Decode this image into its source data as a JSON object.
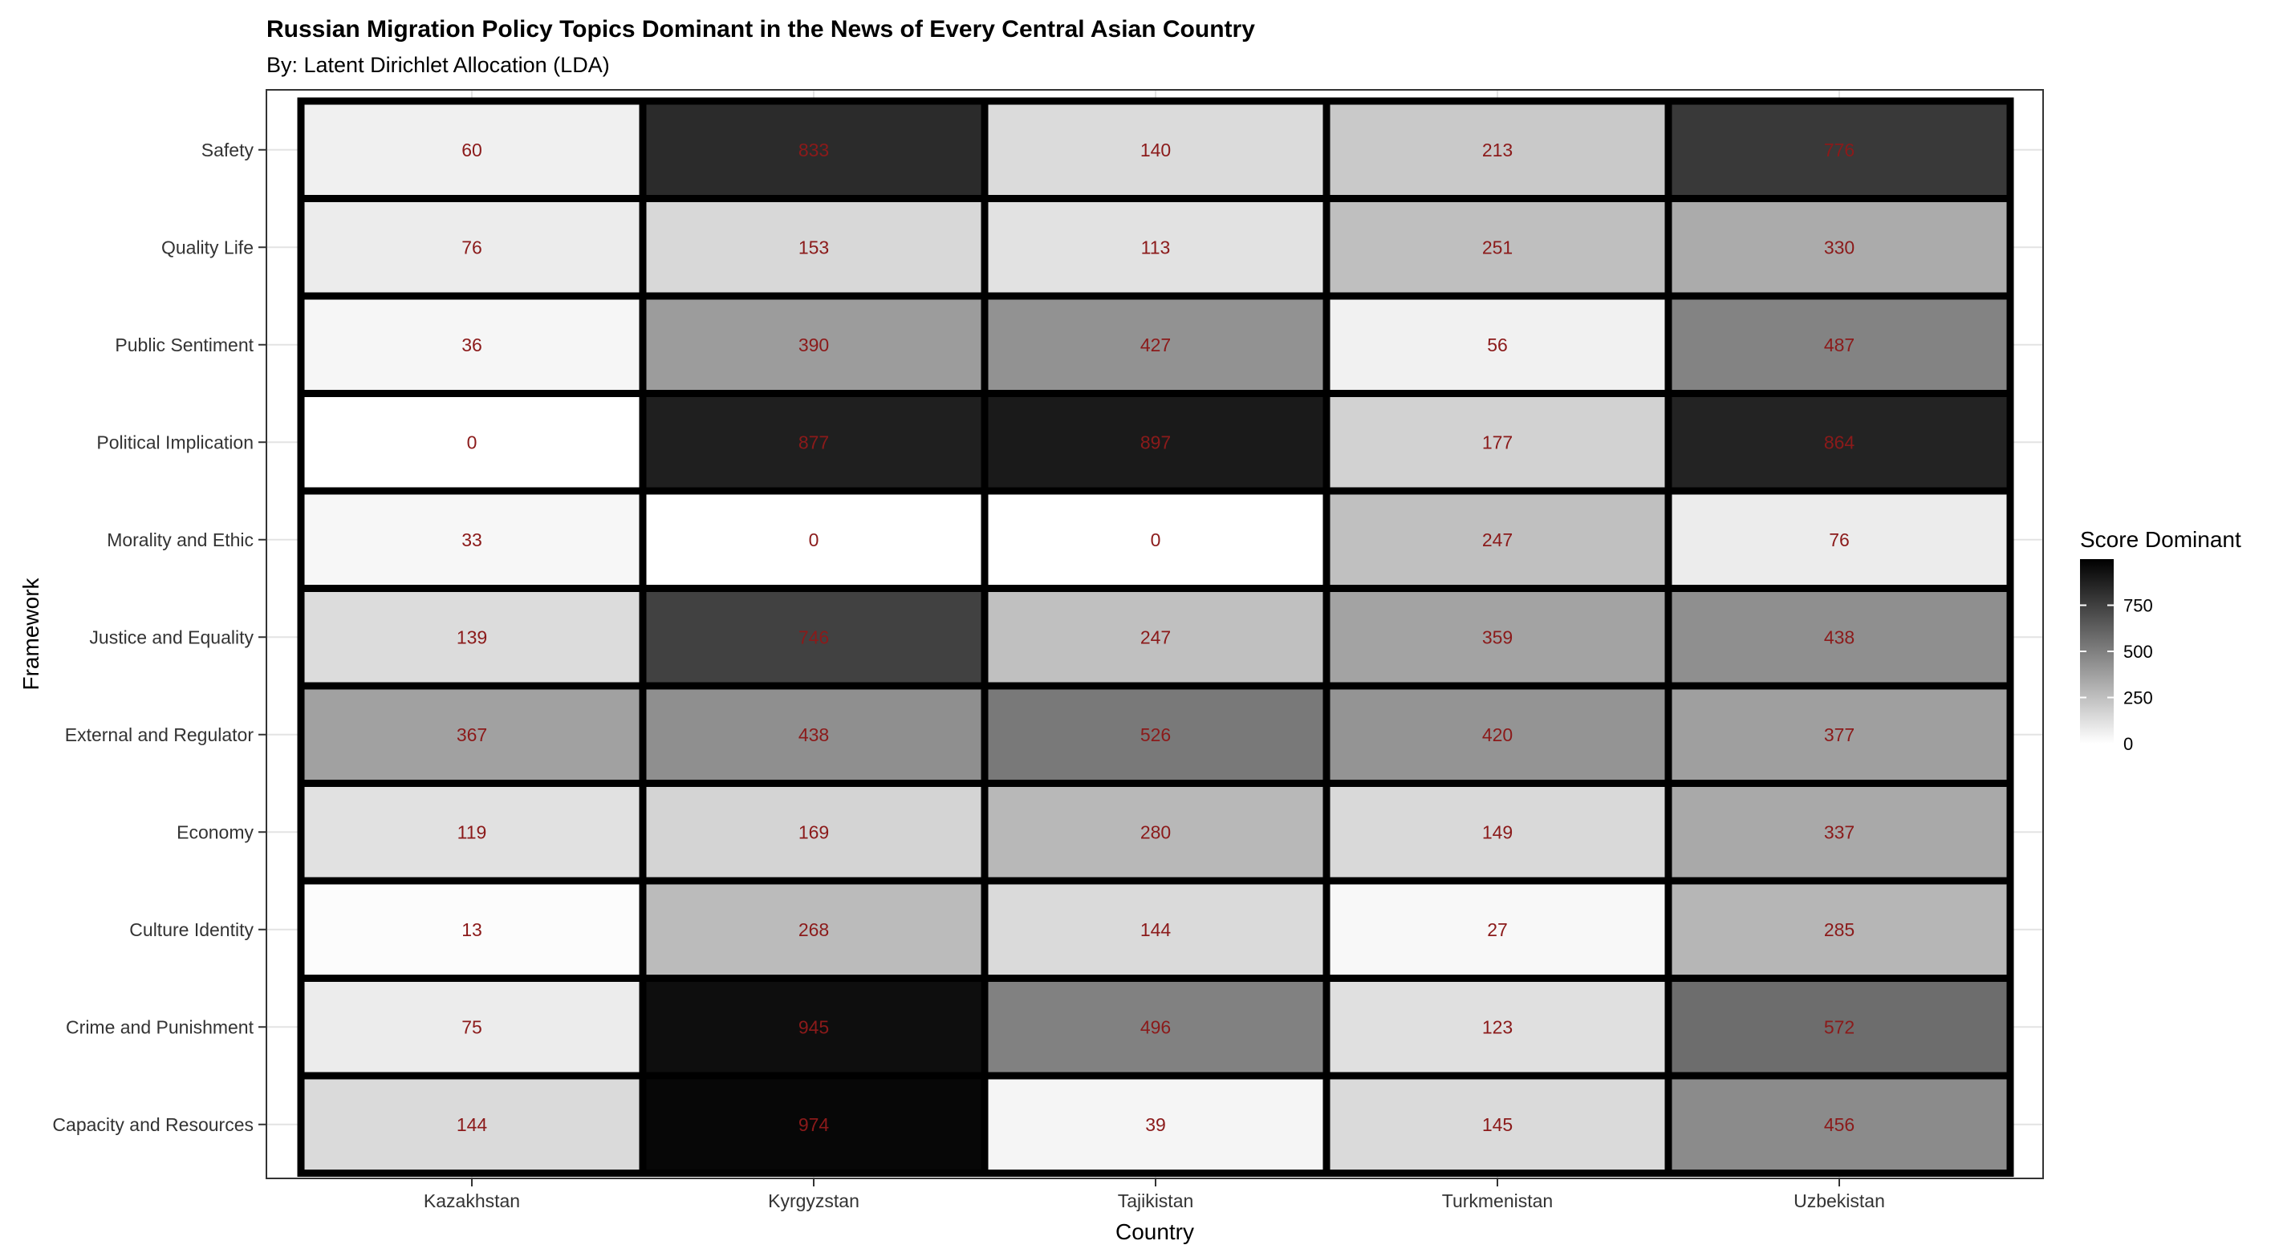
{
  "chart_data": {
    "type": "heatmap",
    "title": "Russian Migration Policy Topics Dominant in the News of Every Central Asian Country",
    "subtitle": "By: Latent Dirichlet Allocation (LDA)",
    "xlabel": "Country",
    "ylabel": "Framework",
    "x_categories": [
      "Kazakhstan",
      "Kyrgyzstan",
      "Tajikistan",
      "Turkmenistan",
      "Uzbekistan"
    ],
    "y_categories": [
      "Safety",
      "Quality Life",
      "Public Sentiment",
      "Political Implication",
      "Morality and Ethic",
      "Justice and Equality",
      "External and Regulator",
      "Economy",
      "Culture Identity",
      "Crime and Punishment",
      "Capacity and Resources"
    ],
    "values": [
      [
        60,
        833,
        140,
        213,
        776
      ],
      [
        76,
        153,
        113,
        251,
        330
      ],
      [
        36,
        390,
        427,
        56,
        487
      ],
      [
        0,
        877,
        897,
        177,
        864
      ],
      [
        33,
        0,
        0,
        247,
        76
      ],
      [
        139,
        746,
        247,
        359,
        438
      ],
      [
        367,
        438,
        526,
        420,
        377
      ],
      [
        119,
        169,
        280,
        149,
        337
      ],
      [
        13,
        268,
        144,
        27,
        285
      ],
      [
        75,
        945,
        496,
        123,
        572
      ],
      [
        144,
        974,
        39,
        145,
        456
      ]
    ],
    "legend": {
      "title": "Score Dominant",
      "ticks": [
        0,
        250,
        500,
        750
      ],
      "low_color": "#ffffff",
      "high_color": "#000000",
      "position": "right"
    },
    "label_color": "#8b1a1a",
    "grid": true
  }
}
